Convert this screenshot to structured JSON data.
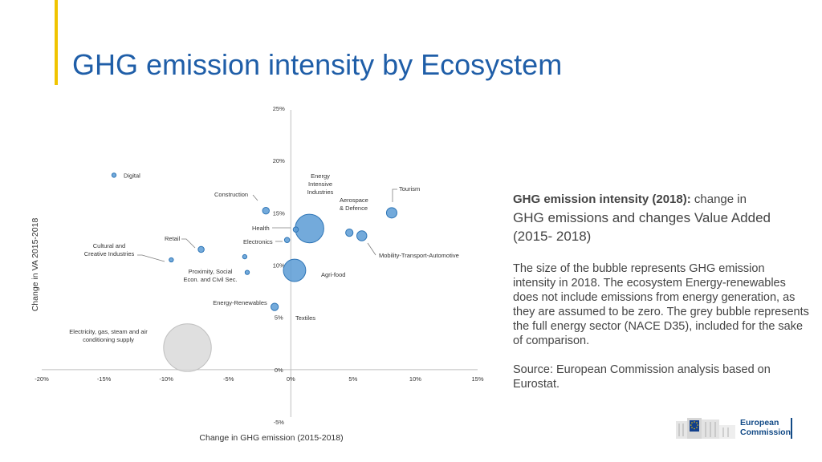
{
  "slide": {
    "title": "GHG emission intensity by Ecosystem",
    "colors": {
      "accent": "#f0c400",
      "title": "#1f5ea8",
      "bubble": "#5b9bd5",
      "bubble_grey": "#d9d9d9"
    }
  },
  "description": {
    "lead_bold": "GHG emission intensity (2018):",
    "lead_rest": " change in",
    "lead_line2": "GHG emissions and changes Value Added (2015- 2018)",
    "note": "The size of the bubble represents GHG emission intensity in 2018. The ecosystem Energy-renewables does not include emissions from energy generation, as they are assumed to be zero. The grey bubble represents the full energy sector (NACE D35), included for the sake of comparison.",
    "source": "Source: European Commission analysis based on Eurostat."
  },
  "logo": {
    "line1": "European",
    "line2": "Commission",
    "icon": "eu-flag-building-icon"
  },
  "chart_data": {
    "type": "bubble",
    "xlabel": "Change in GHG emission (2015-2018)",
    "ylabel": "Change in VA 2015-2018",
    "xlim": [
      -20,
      15
    ],
    "ylim": [
      -5,
      25
    ],
    "xticks": [
      "-20%",
      "-15%",
      "-10%",
      "-5%",
      "0%",
      "5%",
      "10%",
      "15%"
    ],
    "xtick_values": [
      -20,
      -15,
      -10,
      -5,
      0,
      5,
      10,
      15
    ],
    "yticks": [
      "-5%",
      "0%",
      "5%",
      "10%",
      "15%",
      "20%",
      "25%"
    ],
    "ytick_values": [
      -5,
      0,
      5,
      10,
      15,
      20,
      25
    ],
    "points": [
      {
        "name": "Digital",
        "x": -14.2,
        "y": 18.6,
        "size": 0.4,
        "label_pos": "right"
      },
      {
        "name": "Construction",
        "x": -2.0,
        "y": 15.2,
        "size": 1.0,
        "label_pos": "upper-left"
      },
      {
        "name": "Health",
        "x": 0.4,
        "y": 13.4,
        "size": 0.6,
        "label_pos": "left"
      },
      {
        "name": "Energy Intensive Industries",
        "x": 1.5,
        "y": 13.5,
        "size": 18.0,
        "label_pos": "above"
      },
      {
        "name": "Aerospace & Defence",
        "x": 4.7,
        "y": 13.1,
        "size": 1.2,
        "label_pos": "above"
      },
      {
        "name": "Tourism",
        "x": 8.1,
        "y": 15.0,
        "size": 2.4,
        "label_pos": "upper-right"
      },
      {
        "name": "Mobility-Transport-Automotive",
        "x": 5.7,
        "y": 12.8,
        "size": 2.2,
        "label_pos": "lower-right"
      },
      {
        "name": "Electronics",
        "x": -0.3,
        "y": 12.4,
        "size": 0.6,
        "label_pos": "left"
      },
      {
        "name": "Retail",
        "x": -7.2,
        "y": 11.5,
        "size": 0.8,
        "label_pos": "upper-left"
      },
      {
        "name": "Cultural and Creative Industries",
        "x": -9.6,
        "y": 10.5,
        "size": 0.4,
        "label_pos": "upper-left"
      },
      {
        "name": "Proximity, Social Econ. and Civil Sec.",
        "x": -3.7,
        "y": 10.8,
        "size": 0.4,
        "label_pos": "lower-left"
      },
      {
        "name": "Agri-food",
        "x": 0.3,
        "y": 9.5,
        "size": 11.0,
        "label_pos": "right"
      },
      {
        "name": "Energy-Renewables",
        "x": -1.3,
        "y": 6.0,
        "size": 1.2,
        "label_pos": "lower-left"
      },
      {
        "name": "Textiles",
        "x": -3.5,
        "y": 9.3,
        "size": 0.4,
        "label_pos": "lower-right-far"
      },
      {
        "name": "Electricity, gas, steam and air conditioning supply",
        "x": -8.3,
        "y": 2.1,
        "size": 50.0,
        "label_pos": "left",
        "grey": true
      }
    ],
    "grid": false,
    "legend": "none"
  }
}
